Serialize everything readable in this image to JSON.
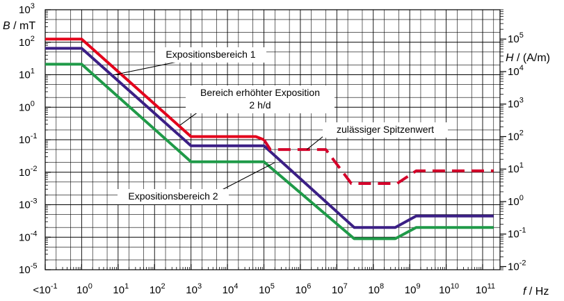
{
  "chart_data": {
    "type": "line",
    "x_scale": "log",
    "y_scale": "log",
    "y2_scale": "log",
    "xlim": [
      0.1,
      300000000000
    ],
    "ylim": [
      1e-05,
      1000
    ],
    "y2lim": [
      0.008,
      800000
    ],
    "grid": true,
    "xlabel": {
      "italic": "f",
      "rest": " / Hz"
    },
    "ylabel": {
      "italic": "B",
      "rest": " / mT"
    },
    "y2label": {
      "italic": "H",
      "rest": " / (A/m)"
    },
    "x_ticks": [
      {
        "value": 0.1,
        "base": "<10",
        "exp": "-1"
      },
      {
        "value": 1,
        "base": "10",
        "exp": "0"
      },
      {
        "value": 10,
        "base": "10",
        "exp": "1"
      },
      {
        "value": 100,
        "base": "10",
        "exp": "2"
      },
      {
        "value": 1000,
        "base": "10",
        "exp": "3"
      },
      {
        "value": 10000,
        "base": "10",
        "exp": "4"
      },
      {
        "value": 100000,
        "base": "10",
        "exp": "5"
      },
      {
        "value": 1000000,
        "base": "10",
        "exp": "6"
      },
      {
        "value": 10000000,
        "base": "10",
        "exp": "7"
      },
      {
        "value": 100000000,
        "base": "10",
        "exp": "8"
      },
      {
        "value": 1000000000,
        "base": "10",
        "exp": "9"
      },
      {
        "value": 10000000000,
        "base": "10",
        "exp": "10"
      },
      {
        "value": 100000000000,
        "base": "10",
        "exp": "11"
      }
    ],
    "y_ticks": [
      {
        "value": 1000,
        "base": "10",
        "exp": "3"
      },
      {
        "value": 100,
        "base": "10",
        "exp": "2"
      },
      {
        "value": 10,
        "base": "10",
        "exp": "1"
      },
      {
        "value": 1,
        "base": "10",
        "exp": "0"
      },
      {
        "value": 0.1,
        "base": "10",
        "exp": "-1"
      },
      {
        "value": 0.01,
        "base": "10",
        "exp": "-2"
      },
      {
        "value": 0.001,
        "base": "10",
        "exp": "-3"
      },
      {
        "value": 0.0001,
        "base": "10",
        "exp": "-4"
      },
      {
        "value": 1e-05,
        "base": "10",
        "exp": "-5"
      }
    ],
    "y2_ticks": [
      {
        "value": 100000,
        "base": "10",
        "exp": "5"
      },
      {
        "value": 10000,
        "base": "10",
        "exp": "4"
      },
      {
        "value": 1000,
        "base": "10",
        "exp": "3"
      },
      {
        "value": 100,
        "base": "10",
        "exp": "2"
      },
      {
        "value": 10,
        "base": "10",
        "exp": "1"
      },
      {
        "value": 1,
        "base": "10",
        "exp": "0"
      },
      {
        "value": 0.1,
        "base": "10",
        "exp": "-1"
      },
      {
        "value": 0.01,
        "base": "10",
        "exp": "-2"
      }
    ],
    "series": [
      {
        "id": "red",
        "name": "Expositionsbereich 1",
        "color": "#e3001b",
        "dash": false,
        "points": [
          [
            0.1,
            125
          ],
          [
            1,
            125
          ],
          [
            1000,
            0.125
          ],
          [
            60000,
            0.125
          ],
          [
            100000,
            0.1
          ]
        ]
      },
      {
        "id": "purple",
        "name": "Bereich erhöhter Exposition 2 h/d",
        "color": "#3b1f85",
        "dash": false,
        "points": [
          [
            0.1,
            65
          ],
          [
            1,
            65
          ],
          [
            1000,
            0.065
          ],
          [
            100000,
            0.065
          ],
          [
            30000000,
            0.0002
          ],
          [
            400000000,
            0.0002
          ],
          [
            1500000000,
            0.00045
          ],
          [
            200000000000,
            0.00045
          ]
        ]
      },
      {
        "id": "green",
        "name": "Expositionsbereich 2",
        "color": "#1f9a48",
        "dash": false,
        "points": [
          [
            0.1,
            21
          ],
          [
            1,
            21
          ],
          [
            1000,
            0.021
          ],
          [
            100000,
            0.021
          ],
          [
            30000000,
            9e-05
          ],
          [
            400000000,
            9e-05
          ],
          [
            1500000000,
            0.0002
          ],
          [
            200000000000,
            0.0002
          ]
        ]
      },
      {
        "id": "peak",
        "name": "zulässiger Spitzenwert",
        "color": "#d4002a",
        "dash": true,
        "points": [
          [
            100000,
            0.1
          ],
          [
            150000,
            0.05
          ],
          [
            5000000,
            0.05
          ],
          [
            25000000,
            0.0045
          ],
          [
            450000000,
            0.0045
          ],
          [
            1500000000,
            0.011
          ],
          [
            200000000000,
            0.011
          ]
        ]
      }
    ],
    "annotations": [
      {
        "id": "expositionsbereich-1",
        "lines": [
          "Expositionsbereich 1"
        ],
        "line_color": "#000000"
      },
      {
        "id": "bereich-erhoehter-exposition",
        "lines": [
          "Bereich erhöhter Exposition",
          "2 h/d"
        ],
        "line_color": "#000000"
      },
      {
        "id": "zulaessiger-spitzenwert",
        "lines": [
          "zulässiger Spitzenwert"
        ],
        "line_color": "#000000"
      },
      {
        "id": "expositionsbereich-2",
        "lines": [
          "Expositionsbereich 2"
        ],
        "line_color": "#000000"
      }
    ]
  }
}
